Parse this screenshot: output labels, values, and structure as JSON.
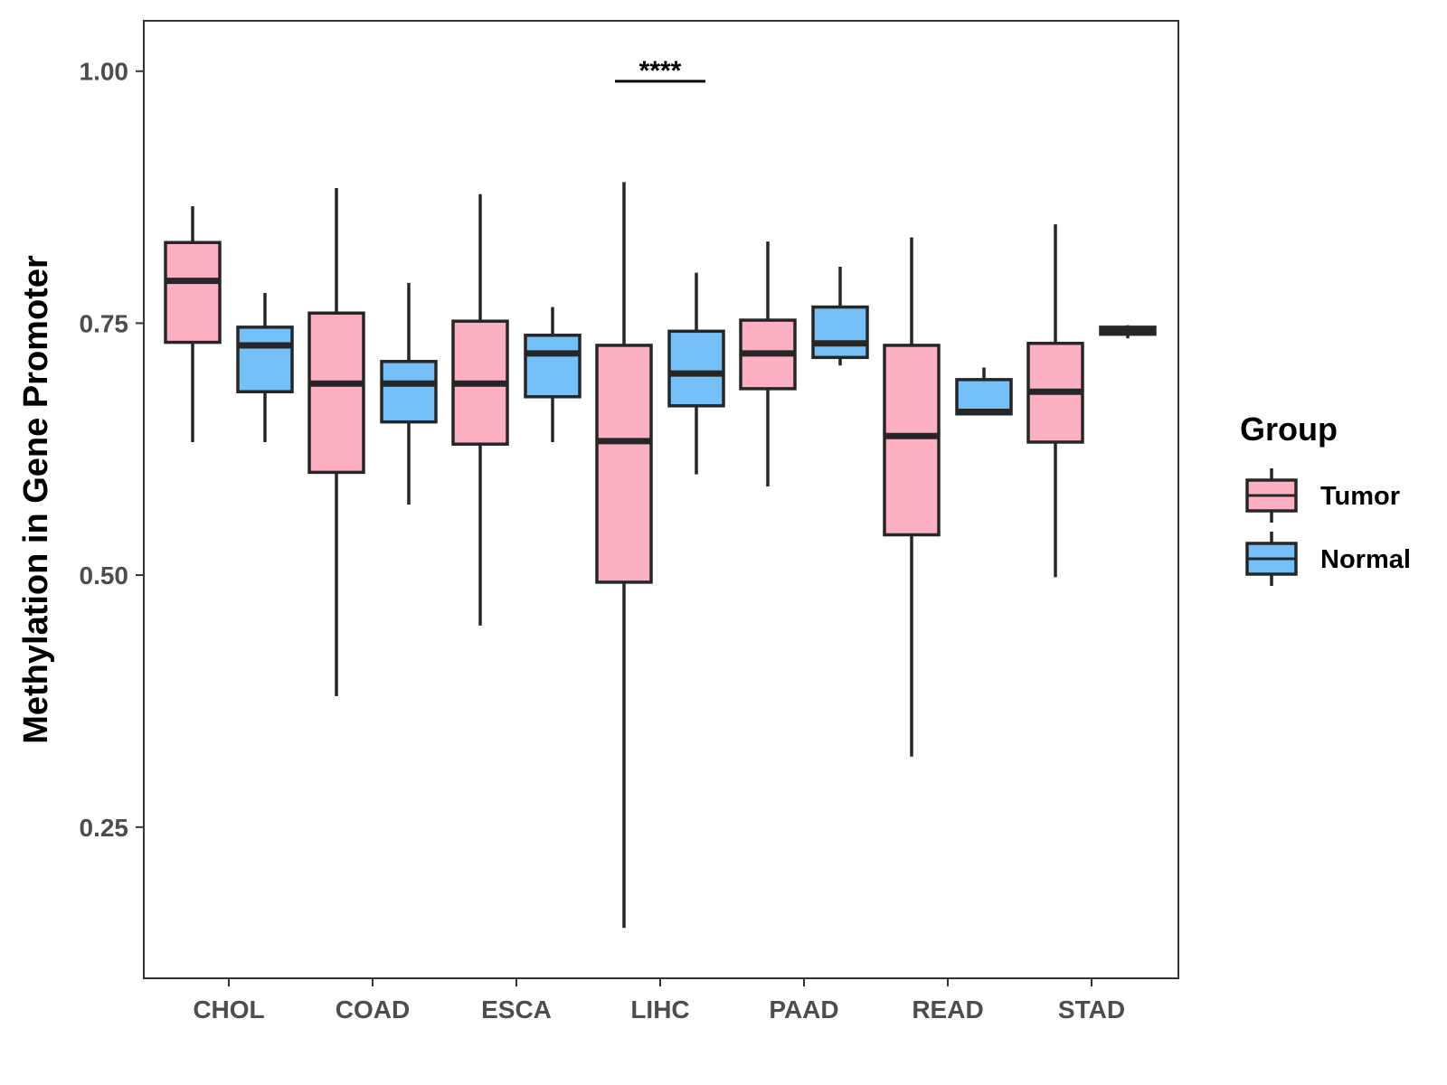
{
  "chart_data": {
    "type": "boxplot",
    "ylabel": "Methylation in Gene Promoter",
    "xlabel": "",
    "ylim": [
      0.1,
      1.05
    ],
    "yticks": [
      0.25,
      0.5,
      0.75,
      1.0
    ],
    "ytick_labels": [
      "0.25",
      "0.50",
      "0.75",
      "1.00"
    ],
    "categories": [
      "CHOL",
      "COAD",
      "ESCA",
      "LIHC",
      "PAAD",
      "READ",
      "STAD"
    ],
    "legend": {
      "title": "Group",
      "position": "right",
      "entries": [
        {
          "name": "Tumor",
          "color": "#FDB0C2"
        },
        {
          "name": "Normal",
          "color": "#75C0F8"
        }
      ]
    },
    "box_outline_color": "#262626",
    "series": [
      {
        "name": "Tumor",
        "color": "#FDB0C2",
        "boxes": [
          {
            "category": "CHOL",
            "whisker_low": 0.632,
            "q1": 0.731,
            "median": 0.792,
            "q3": 0.83,
            "whisker_high": 0.866
          },
          {
            "category": "COAD",
            "whisker_low": 0.38,
            "q1": 0.602,
            "median": 0.69,
            "q3": 0.76,
            "whisker_high": 0.884
          },
          {
            "category": "ESCA",
            "whisker_low": 0.45,
            "q1": 0.63,
            "median": 0.69,
            "q3": 0.752,
            "whisker_high": 0.878
          },
          {
            "category": "LIHC",
            "whisker_low": 0.15,
            "q1": 0.493,
            "median": 0.633,
            "q3": 0.728,
            "whisker_high": 0.89
          },
          {
            "category": "PAAD",
            "whisker_low": 0.588,
            "q1": 0.685,
            "median": 0.72,
            "q3": 0.753,
            "whisker_high": 0.831
          },
          {
            "category": "READ",
            "whisker_low": 0.32,
            "q1": 0.54,
            "median": 0.638,
            "q3": 0.728,
            "whisker_high": 0.835
          },
          {
            "category": "STAD",
            "whisker_low": 0.498,
            "q1": 0.632,
            "median": 0.682,
            "q3": 0.73,
            "whisker_high": 0.848
          }
        ]
      },
      {
        "name": "Normal",
        "color": "#75C0F8",
        "boxes": [
          {
            "category": "CHOL",
            "whisker_low": 0.632,
            "q1": 0.682,
            "median": 0.728,
            "q3": 0.746,
            "whisker_high": 0.78
          },
          {
            "category": "COAD",
            "whisker_low": 0.57,
            "q1": 0.652,
            "median": 0.69,
            "q3": 0.712,
            "whisker_high": 0.79
          },
          {
            "category": "ESCA",
            "whisker_low": 0.632,
            "q1": 0.677,
            "median": 0.72,
            "q3": 0.738,
            "whisker_high": 0.766
          },
          {
            "category": "LIHC",
            "whisker_low": 0.6,
            "q1": 0.668,
            "median": 0.7,
            "q3": 0.742,
            "whisker_high": 0.8
          },
          {
            "category": "PAAD",
            "whisker_low": 0.708,
            "q1": 0.716,
            "median": 0.73,
            "q3": 0.766,
            "whisker_high": 0.806
          },
          {
            "category": "READ",
            "whisker_low": 0.66,
            "q1": 0.66,
            "median": 0.662,
            "q3": 0.694,
            "whisker_high": 0.706
          },
          {
            "category": "STAD",
            "whisker_low": 0.735,
            "q1": 0.739,
            "median": 0.742,
            "q3": 0.746,
            "whisker_high": 0.748
          }
        ]
      }
    ],
    "annotations": [
      {
        "category": "LIHC",
        "text": "****",
        "y": 0.99
      }
    ]
  }
}
